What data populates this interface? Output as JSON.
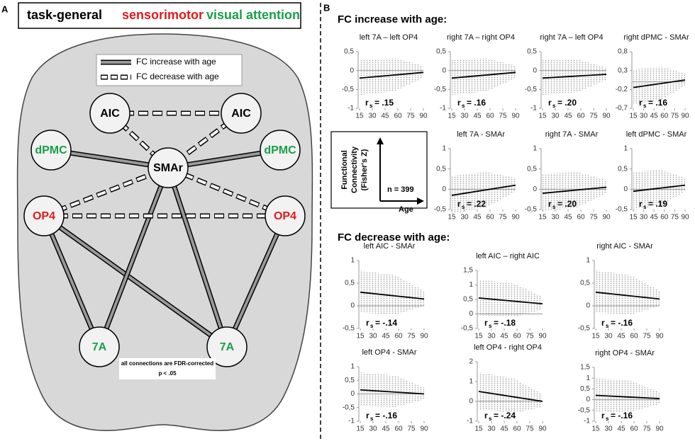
{
  "panel_a": {
    "label": "A",
    "header": [
      "task-general",
      "sensorimotor",
      "visual attention"
    ],
    "legend": [
      "FC increase with age",
      "FC decrease with age"
    ],
    "nodes": [
      {
        "label": "AIC",
        "color": "#000000"
      },
      {
        "label": "AIC",
        "color": "#000000"
      },
      {
        "label": "dPMC",
        "color": "#1a9e4a"
      },
      {
        "label": "dPMC",
        "color": "#1a9e4a"
      },
      {
        "label": "SMAr",
        "color": "#000000"
      },
      {
        "label": "OP4",
        "color": "#e31a1c"
      },
      {
        "label": "OP4",
        "color": "#e31a1c"
      },
      {
        "label": "7A",
        "color": "#1a9e4a"
      },
      {
        "label": "7A",
        "color": "#1a9e4a"
      }
    ],
    "note": [
      "all connections are FDR-corrected",
      "p < .05"
    ]
  },
  "panel_b": {
    "label": "B",
    "increase_title": "FC increase with age:",
    "decrease_title": "FC decrease with age:",
    "inset": {
      "y_label": [
        "Functional",
        "Connectivity",
        "(Fisher's Z)"
      ],
      "n": "n = 399",
      "x_label": "Age"
    },
    "r_symbol": "r",
    "r_sub": "s",
    "xlim": [
      15,
      90
    ],
    "xticks": [
      15,
      30,
      45,
      60,
      75,
      90
    ],
    "plots": [
      {
        "title": "left 7A – left OP4",
        "ylim": [
          -1,
          0.5
        ],
        "yticks": [
          {
            "value": 0.5,
            "label": "0,5"
          },
          0,
          {
            "value": -0.5,
            "label": "-0,5"
          },
          -1
        ],
        "r": "= .15",
        "fit": {
          "x": [
            15,
            90
          ],
          "y": [
            -0.2,
            -0.05
          ]
        }
      },
      {
        "title": "right 7A – right OP4",
        "ylim": [
          -1,
          0.5
        ],
        "yticks": [
          {
            "value": 0.5,
            "label": "0,5"
          },
          0,
          {
            "value": -0.5,
            "label": "-0,5"
          },
          -1
        ],
        "r": "= .16",
        "fit": {
          "x": [
            15,
            90
          ],
          "y": [
            -0.2,
            -0.05
          ]
        }
      },
      {
        "title": "right 7A – left OP4",
        "ylim": [
          -1,
          0.5
        ],
        "yticks": [
          {
            "value": 0.5,
            "label": "0,5"
          },
          0,
          {
            "value": -0.5,
            "label": "-0,5"
          },
          -1
        ],
        "r": "= .20",
        "fit": {
          "x": [
            15,
            90
          ],
          "y": [
            -0.2,
            -0.1
          ]
        }
      },
      {
        "title": "right dPMC - SMAr",
        "ylim": [
          -0.7,
          0.8
        ],
        "yticks": [
          {
            "value": 0.8,
            "label": "0,8"
          },
          {
            "value": 0.3,
            "label": "0,3"
          },
          {
            "value": -0.2,
            "label": "-0,2"
          },
          {
            "value": -0.7,
            "label": "-0,7"
          }
        ],
        "r": "= .16",
        "fit": {
          "x": [
            15,
            90
          ],
          "y": [
            -0.15,
            0.05
          ]
        }
      },
      {
        "title": "left 7A - SMAr",
        "ylim": [
          -0.5,
          1
        ],
        "yticks": [
          1,
          {
            "value": 0.5,
            "label": "0,5"
          },
          0,
          {
            "value": -0.5,
            "label": "-0,5"
          }
        ],
        "r": "= .22",
        "fit": {
          "x": [
            15,
            90
          ],
          "y": [
            -0.15,
            0.1
          ]
        }
      },
      {
        "title": "right 7A - SMAr",
        "ylim": [
          -0.5,
          1
        ],
        "yticks": [
          1,
          {
            "value": 0.5,
            "label": "0,5"
          },
          0,
          {
            "value": -0.5,
            "label": "-0,5"
          }
        ],
        "r": "= .20",
        "fit": {
          "x": [
            15,
            90
          ],
          "y": [
            -0.1,
            0.05
          ]
        }
      },
      {
        "title": "left dPMC - SMAr",
        "ylim": [
          -0.5,
          1
        ],
        "yticks": [
          1,
          {
            "value": 0.5,
            "label": "0,5"
          },
          0,
          {
            "value": -0.5,
            "label": "-0,5"
          }
        ],
        "r": "= .19",
        "fit": {
          "x": [
            15,
            90
          ],
          "y": [
            -0.05,
            0.1
          ]
        }
      },
      {
        "title": "left AIC - SMAr",
        "ylim": [
          -0.5,
          1
        ],
        "yticks": [
          1,
          {
            "value": 0.5,
            "label": "0,5"
          },
          0,
          {
            "value": -0.5,
            "label": "-0,5"
          }
        ],
        "r": "= -.14",
        "fit": {
          "x": [
            15,
            90
          ],
          "y": [
            0.3,
            0.15
          ]
        }
      },
      {
        "title": "left AIC – right AIC",
        "ylim": [
          -0.5,
          1.5
        ],
        "yticks": [
          {
            "value": 1.5,
            "label": "1,5"
          },
          1,
          {
            "value": 0.5,
            "label": "0,5"
          },
          0,
          {
            "value": -0.5,
            "label": "-0,5"
          }
        ],
        "r": "= -.18",
        "fit": {
          "x": [
            15,
            90
          ],
          "y": [
            0.55,
            0.35
          ]
        }
      },
      {
        "title": "right AIC - SMAr",
        "ylim": [
          -0.5,
          1
        ],
        "yticks": [
          1,
          {
            "value": 0.5,
            "label": "0,5"
          },
          0,
          {
            "value": -0.5,
            "label": "-0,5"
          }
        ],
        "r": "= -.16",
        "fit": {
          "x": [
            15,
            90
          ],
          "y": [
            0.3,
            0.15
          ]
        }
      },
      {
        "title": "left OP4 - SMAr",
        "ylim": [
          -1,
          1
        ],
        "yticks": [
          1,
          {
            "value": 0.5,
            "label": "0,5"
          },
          0,
          {
            "value": -0.5,
            "label": "-0,5"
          },
          -1
        ],
        "r": "= -.16",
        "fit": {
          "x": [
            15,
            90
          ],
          "y": [
            0.15,
            0
          ]
        }
      },
      {
        "title": "left OP4 - right OP4",
        "ylim": [
          -1,
          2
        ],
        "yticks": [
          2,
          1,
          0,
          -1
        ],
        "r": "= -.24",
        "fit": {
          "x": [
            15,
            90
          ],
          "y": [
            0.5,
            0
          ]
        }
      },
      {
        "title": "right OP4 - SMAr",
        "ylim": [
          -1,
          1.5
        ],
        "yticks": [
          {
            "value": 1.5,
            "label": "1,5"
          },
          1,
          {
            "value": 0.5,
            "label": "0,5"
          },
          0,
          {
            "value": -0.5,
            "label": "-0,5"
          },
          -1
        ],
        "r": "= -.16",
        "fit": {
          "x": [
            15,
            90
          ],
          "y": [
            0.2,
            0.05
          ]
        }
      }
    ]
  }
}
